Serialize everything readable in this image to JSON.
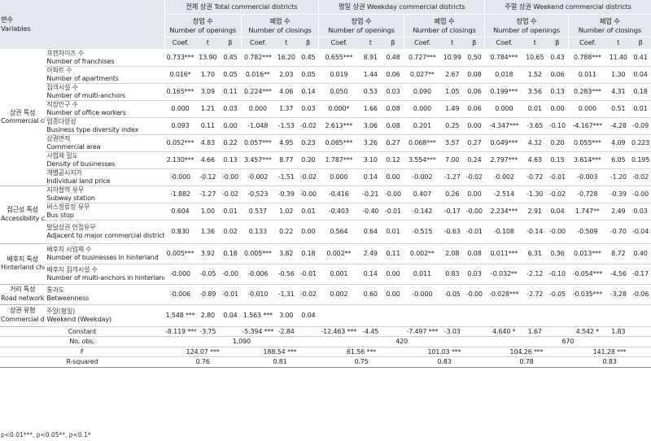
{
  "header": {
    "var_ko": "변수",
    "var_en": "Variables",
    "total": "전체 상권 Total commercial districts",
    "weekday": "평일 상권 Weekday commercial districts",
    "weekend": "주말 상권 Weekend commercial districts",
    "openings_ko": "창업 수",
    "openings_en": "Number of openings",
    "closings_ko": "폐업 수",
    "closings_en": "Number of closings",
    "coef": "Coef.",
    "t": "t",
    "beta": "β"
  },
  "groups": [
    {
      "ko": "상권 특성",
      "en": "Commercial characteristics"
    },
    {
      "ko": "접근성 특성",
      "en": "Accessibility characteristics"
    },
    {
      "ko": "배후지 특성",
      "en": "Hinterland characteristics"
    },
    {
      "ko": "거리 특성",
      "en": "Road network characteristics"
    },
    {
      "ko": "상권 유형",
      "en": "Commercial districts type"
    }
  ],
  "rows": [
    {
      "ko": "프랜차이즈 수",
      "en": "Number of franchises",
      "v": [
        "0.733***",
        "13.90",
        "0.45",
        "0.782***",
        "16.20",
        "0.45",
        "0.655***",
        "8.91",
        "0.48",
        "0.727***",
        "10.99",
        "0.50",
        "0.784***",
        "10.65",
        "0.43",
        "0.788***",
        "11.40",
        "0.41"
      ]
    },
    {
      "ko": "아파트 수",
      "en": "Number of apartments",
      "v": [
        "0.016*",
        "1.70",
        "0.05",
        "0.016**",
        "2.03",
        "0.05",
        "0.019",
        "1.44",
        "0.06",
        "0.027**",
        "2.67",
        "0.08",
        "0.018",
        "1.52",
        "0.06",
        "0.011",
        "1.30",
        "0.04"
      ]
    },
    {
      "ko": "집객시설 수",
      "en": "Number of multi-anchors",
      "v": [
        "0.165***",
        "3.09",
        "0.11",
        "0.224***",
        "4.06",
        "0.14",
        "0.050",
        "0.53",
        "0.03",
        "0.090",
        "1.05",
        "0.06",
        "0.199***",
        "3.56",
        "0.13",
        "0.283***",
        "4.31",
        "0.18"
      ]
    },
    {
      "ko": "직장인구 수",
      "en": "Number of office workers",
      "v": [
        "0.000",
        "1.21",
        "0.03",
        "0.000",
        "1.37",
        "0.03",
        "0.000*",
        "1.66",
        "0.08",
        "0.000",
        "1.49",
        "0.06",
        "0.000",
        "0.01",
        "0.00",
        "0.000",
        "0.51",
        "0.01"
      ]
    },
    {
      "ko": "업종다양성",
      "en": "Business type diversity index",
      "v": [
        "0.093",
        "0.11",
        "0.00",
        "-1.048",
        "-1.53",
        "-0.02",
        "2.613***",
        "3.06",
        "0.08",
        "0.201",
        "0.25",
        "0.00",
        "-4.347***",
        "-3.65",
        "-0.10",
        "-4.167***",
        "-4.28",
        "-0.09"
      ]
    },
    {
      "ko": "상권면적",
      "en": "Commercial area",
      "v": [
        "0.052***",
        "4.83",
        "0.22",
        "0.057***",
        "4.95",
        "0.23",
        "0.065***",
        "3.26",
        "0.27",
        "0.068***",
        "3.57",
        "0.27",
        "0.049***",
        "4.32",
        "0.20",
        "0.055***",
        "4.09",
        "0.223"
      ]
    },
    {
      "ko": "사업체 밀도",
      "en": "Density of businesses",
      "v": [
        "2.130***",
        "4.66",
        "0.13",
        "3.457***",
        "8.77",
        "0.20",
        "1.787***",
        "3.10",
        "0.12",
        "3.554***",
        "7.00",
        "0.24",
        "2.797***",
        "4.63",
        "0.15",
        "3.614***",
        "6.05",
        "0.195"
      ]
    },
    {
      "ko": "개별공시지가",
      "en": "Individual land price",
      "v": [
        "-0.000",
        "-0.12",
        "-0.00",
        "-0.002",
        "-1.51",
        "-0.02",
        "0.000",
        "0.14",
        "0.00",
        "-0.002",
        "-1.27",
        "-0.02",
        "-0.002",
        "-0.72",
        "-0.01",
        "-0.003",
        "-1.20",
        "-0.02"
      ]
    },
    {
      "ko": "지하철역 유무",
      "en": "Subway station",
      "v": [
        "-1.882",
        "-1.27",
        "-0.02",
        "-0.523",
        "-0.39",
        "-0.00",
        "-0.416",
        "-0.21",
        "-0.00",
        "0.407",
        "0.26",
        "0.00",
        "-2.514",
        "-1.30",
        "-0.02",
        "-0.728",
        "-0.39",
        "-0.00"
      ]
    },
    {
      "ko": "버스정류장 유무",
      "en": "Bus stop",
      "v": [
        "0.604",
        "1.00",
        "0.01",
        "0.537",
        "1.02",
        "0.01",
        "-0.403",
        "-0.40",
        "-0.01",
        "-0.142",
        "-0.17",
        "-0.00",
        "2.234***",
        "2.91",
        "0.04",
        "1.747**",
        "2.49",
        "0.03"
      ]
    },
    {
      "ko": "발달상권 인접유무",
      "en": "Adjacent to major commercial district",
      "v": [
        "0.830",
        "1.36",
        "0.02",
        "0.133",
        "0.22",
        "0.00",
        "0.564",
        "0.64",
        "0.01",
        "-0.515",
        "-0.63",
        "-0.01",
        "-0.108",
        "-0.14",
        "-0.00",
        "-0.509",
        "-0.70",
        "-0.04"
      ]
    },
    {
      "ko": "배후지 사업체 수",
      "en": "Number of businesses in hinterland",
      "v": [
        "0.005***",
        "3.92",
        "0.18",
        "0.005***",
        "3.82",
        "0.18",
        "0.002**",
        "2.49",
        "0.11",
        "0.002**",
        "2.08",
        "0.08",
        "0.011***",
        "6.31",
        "0.36",
        "0.013***",
        "8.72",
        "0.40"
      ]
    },
    {
      "ko": "배후지 집객시설 수",
      "en": "Number of multi-anchors in hinterland",
      "v": [
        "-0.000",
        "-0.05",
        "-0.00",
        "-0.006",
        "-0.56",
        "-0.01",
        "0.001",
        "0.14",
        "0.00",
        "0.011",
        "0.83",
        "0.03",
        "-0.032**",
        "-2.12",
        "-0.10",
        "-0.054***",
        "-4.56",
        "-0.17"
      ]
    },
    {
      "ko": "통과도",
      "en": "Betweenness",
      "v": [
        "-0.006",
        "-0.89",
        "-0.01",
        "-0.010",
        "-1.31",
        "-0.02",
        "0.002",
        "0.60",
        "0.00",
        "-0.000",
        "-0.05",
        "-0.00",
        "-0.028***",
        "-2.72",
        "-0.05",
        "-0.035***",
        "-3.28",
        "-0.06"
      ]
    },
    {
      "ko": "주말(평일)",
      "en": "Weekend (Weekday)",
      "v": [
        "1.548 ***",
        "2.80",
        "0.04",
        "1.563 ***",
        "3.00",
        "0.04",
        "",
        "",
        "",
        "",
        "",
        "",
        "",
        "",
        "",
        "",
        "",
        ""
      ]
    }
  ],
  "stats": {
    "constant_label": "Constant",
    "constant": [
      {
        "coef": "-8.119 ***",
        "t": "-3.75"
      },
      {
        "coef": "-5.394 ***",
        "t": "-2.84"
      },
      {
        "coef": "-12.463 ***",
        "t": "-4.45"
      },
      {
        "coef": "-7.497 ***",
        "t": "-3.03"
      },
      {
        "coef": "4.640 *",
        "t": "1.67"
      },
      {
        "coef": "4.542 *",
        "t": "1.83"
      }
    ],
    "nobs_label": "No. obs.",
    "nobs": [
      "1,090",
      "420",
      "670"
    ],
    "f_label": "F",
    "f": [
      "124.07 ***",
      "188.54 ***",
      "61.56 ***",
      "101.03 ***",
      "104.26 ***",
      "141.28 ***"
    ],
    "r2_label": "R-squared",
    "r2": [
      "0.76",
      "0.81",
      "0.75",
      "0.83",
      "0.78",
      "0.83"
    ]
  },
  "footnote": "p<0.01***, p<0.05**, p<0.1*"
}
